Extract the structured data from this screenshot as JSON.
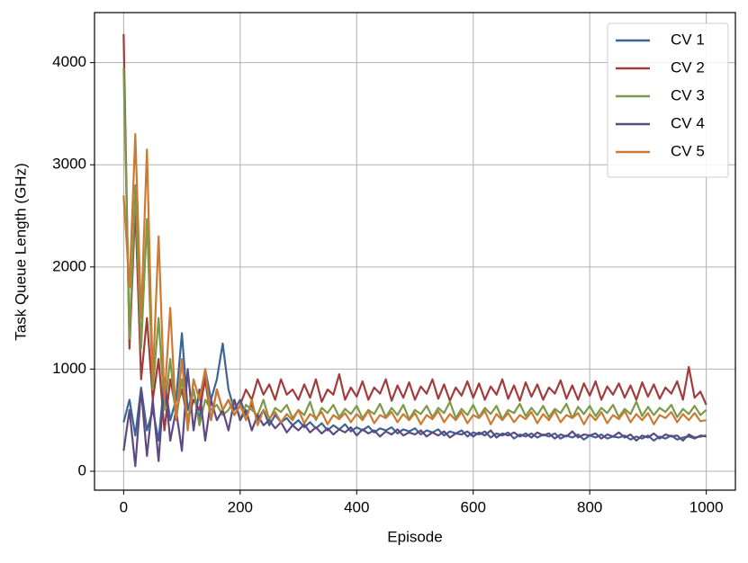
{
  "chart_data": {
    "type": "line",
    "xlabel": "Episode",
    "ylabel": "Task Queue Length (GHz)",
    "xlim": [
      -50,
      1050
    ],
    "ylim": [
      -185,
      4490
    ],
    "xticks": [
      0,
      200,
      400,
      600,
      800,
      1000
    ],
    "yticks": [
      0,
      1000,
      2000,
      3000,
      4000
    ],
    "grid": true,
    "legend": "upper right",
    "x": [
      0,
      10,
      20,
      30,
      40,
      50,
      60,
      70,
      80,
      90,
      100,
      110,
      120,
      130,
      140,
      150,
      160,
      170,
      180,
      190,
      200,
      210,
      220,
      230,
      240,
      250,
      260,
      270,
      280,
      290,
      300,
      310,
      320,
      330,
      340,
      350,
      360,
      370,
      380,
      390,
      400,
      410,
      420,
      430,
      440,
      450,
      460,
      470,
      480,
      490,
      500,
      510,
      520,
      530,
      540,
      550,
      560,
      570,
      580,
      590,
      600,
      610,
      620,
      630,
      640,
      650,
      660,
      670,
      680,
      690,
      700,
      710,
      720,
      730,
      740,
      750,
      760,
      770,
      780,
      790,
      800,
      810,
      820,
      830,
      840,
      850,
      860,
      870,
      880,
      890,
      900,
      910,
      920,
      930,
      940,
      950,
      960,
      970,
      980,
      990,
      1000
    ],
    "series": [
      {
        "name": "CV 1",
        "color": "#3d6496",
        "values": [
          480,
          700,
          350,
          820,
          400,
          600,
          300,
          900,
          500,
          700,
          1350,
          600,
          800,
          500,
          1000,
          700,
          900,
          1250,
          800,
          600,
          700,
          550,
          650,
          500,
          600,
          450,
          550,
          480,
          520,
          450,
          500,
          430,
          480,
          420,
          470,
          400,
          450,
          410,
          460,
          390,
          430,
          400,
          440,
          380,
          420,
          400,
          430,
          370,
          410,
          390,
          420,
          360,
          400,
          380,
          410,
          350,
          390,
          370,
          400,
          340,
          380,
          360,
          390,
          330,
          370,
          350,
          380,
          320,
          360,
          340,
          370,
          330,
          360,
          340,
          370,
          320,
          350,
          330,
          360,
          310,
          350,
          330,
          360,
          320,
          340,
          330,
          350,
          310,
          340,
          320,
          350,
          300,
          340,
          320,
          350,
          310,
          330,
          340,
          320,
          350,
          340
        ]
      },
      {
        "name": "CV 2",
        "color": "#a23b3b",
        "values": [
          4280,
          1200,
          2600,
          900,
          1500,
          700,
          1100,
          400,
          900,
          600,
          800,
          500,
          700,
          600,
          900,
          500,
          800,
          600,
          700,
          550,
          650,
          800,
          700,
          900,
          750,
          850,
          700,
          900,
          750,
          800,
          700,
          850,
          720,
          900,
          680,
          800,
          750,
          950,
          700,
          820,
          730,
          880,
          700,
          820,
          760,
          900,
          690,
          840,
          720,
          870,
          700,
          830,
          760,
          900,
          710,
          850,
          690,
          820,
          740,
          880,
          720,
          860,
          700,
          830,
          750,
          900,
          710,
          840,
          690,
          870,
          730,
          850,
          700,
          820,
          760,
          890,
          710,
          840,
          700,
          860,
          740,
          880,
          700,
          830,
          750,
          860,
          720,
          840,
          700,
          870,
          730,
          850,
          710,
          820,
          760,
          880,
          700,
          1020,
          720,
          780,
          650
        ]
      },
      {
        "name": "CV 3",
        "color": "#7a9a48",
        "values": [
          3950,
          1300,
          2800,
          1200,
          2470,
          800,
          1500,
          600,
          1100,
          500,
          900,
          500,
          800,
          450,
          700,
          600,
          650,
          550,
          600,
          700,
          500,
          650,
          600,
          550,
          700,
          500,
          620,
          580,
          650,
          520,
          600,
          550,
          680,
          500,
          620,
          570,
          650,
          530,
          610,
          560,
          640,
          520,
          600,
          560,
          660,
          530,
          620,
          550,
          650,
          510,
          600,
          560,
          640,
          530,
          620,
          570,
          680,
          520,
          610,
          550,
          650,
          530,
          620,
          560,
          640,
          510,
          600,
          570,
          660,
          540,
          620,
          550,
          640,
          530,
          610,
          570,
          660,
          520,
          630,
          560,
          640,
          540,
          620,
          570,
          650,
          530,
          610,
          560,
          680,
          540,
          630,
          550,
          620,
          580,
          650,
          530,
          610,
          560,
          640,
          550,
          600
        ]
      },
      {
        "name": "CV 4",
        "color": "#5e4a80",
        "values": [
          200,
          600,
          50,
          800,
          150,
          700,
          100,
          900,
          300,
          600,
          200,
          1000,
          400,
          800,
          300,
          700,
          500,
          600,
          400,
          700,
          500,
          600,
          400,
          550,
          450,
          500,
          420,
          480,
          380,
          450,
          400,
          460,
          380,
          430,
          370,
          420,
          360,
          410,
          380,
          430,
          350,
          410,
          370,
          400,
          340,
          390,
          360,
          410,
          350,
          380,
          360,
          400,
          340,
          380,
          350,
          390,
          330,
          370,
          360,
          390,
          340,
          380,
          350,
          400,
          330,
          370,
          350,
          380,
          340,
          370,
          330,
          380,
          350,
          370,
          320,
          360,
          340,
          390,
          330,
          360,
          350,
          370,
          320,
          360,
          340,
          380,
          330,
          360,
          300,
          350,
          330,
          370,
          320,
          360,
          340,
          350,
          300,
          360,
          330,
          340,
          350
        ]
      },
      {
        "name": "CV 5",
        "color": "#cc7a33",
        "values": [
          2700,
          1800,
          3300,
          1500,
          3150,
          900,
          2300,
          700,
          1600,
          500,
          1100,
          400,
          900,
          700,
          1000,
          500,
          800,
          600,
          700,
          550,
          650,
          500,
          700,
          450,
          600,
          520,
          580,
          480,
          560,
          500,
          600,
          470,
          560,
          520,
          580,
          460,
          550,
          510,
          570,
          480,
          560,
          500,
          590,
          470,
          550,
          520,
          580,
          480,
          560,
          500,
          570,
          460,
          550,
          510,
          590,
          480,
          560,
          500,
          580,
          470,
          550,
          520,
          590,
          460,
          560,
          500,
          570,
          480,
          550,
          510,
          580,
          470,
          560,
          500,
          590,
          480,
          550,
          520,
          570,
          460,
          560,
          500,
          580,
          470,
          550,
          510,
          590,
          480,
          560,
          500,
          570,
          460,
          550,
          520,
          580,
          480,
          560,
          500,
          570,
          490,
          500
        ]
      }
    ]
  }
}
